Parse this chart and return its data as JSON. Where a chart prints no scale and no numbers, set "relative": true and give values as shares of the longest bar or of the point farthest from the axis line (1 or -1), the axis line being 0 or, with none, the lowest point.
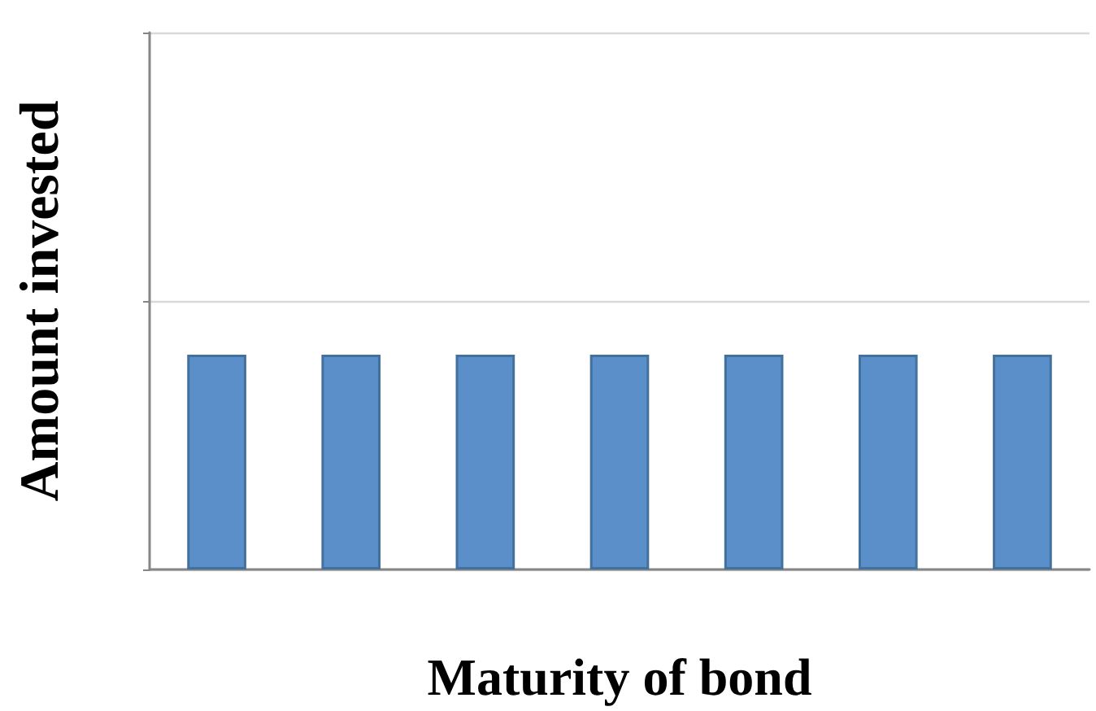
{
  "chart_data": {
    "type": "bar",
    "xlabel": "Maturity of bond",
    "ylabel": "Amount invested",
    "relative": true,
    "grid": "y",
    "categories": [
      null,
      null,
      null,
      null,
      null,
      null,
      null
    ],
    "series": [
      {
        "color": "#5b8fc9",
        "values": [
          1,
          1,
          1,
          1,
          1,
          1,
          1
        ]
      }
    ]
  }
}
